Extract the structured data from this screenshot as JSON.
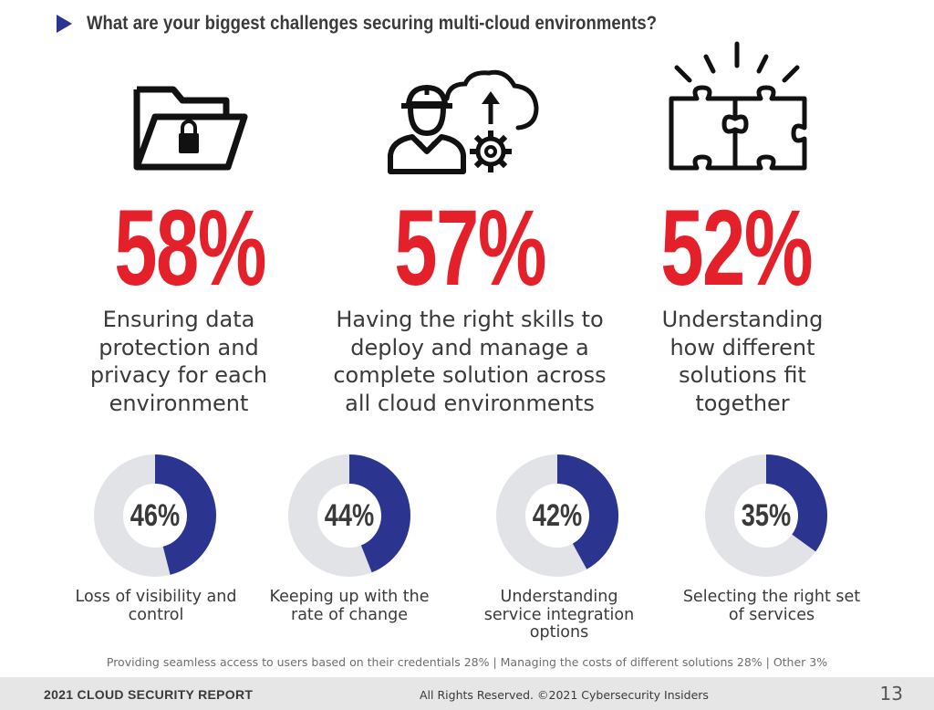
{
  "header": {
    "title": "What are your biggest challenges securing multi-cloud environments?",
    "accent_color": "#2b3590"
  },
  "chart_data": [
    {
      "type": "table",
      "rows": [
        {
          "label": "Ensuring data protection and privacy for each environment",
          "value": 58,
          "display": "58%",
          "icon": "folder-lock-icon"
        },
        {
          "label": "Having the right skills to deploy and manage a complete solution across all cloud environments",
          "value": 57,
          "display": "57%",
          "icon": "engineer-cloud-gear-icon"
        },
        {
          "label": "Understanding how different solutions fit together",
          "value": 52,
          "display": "52%",
          "icon": "puzzle-icon"
        }
      ],
      "value_color": "#e4202a"
    },
    {
      "type": "pie",
      "series": [
        {
          "label": "Loss of visibility and control",
          "value": 46,
          "display": "46%"
        },
        {
          "label": "Keeping up with the rate of change",
          "value": 44,
          "display": "44%"
        },
        {
          "label": "Understanding service integration options",
          "value": 42,
          "display": "42%"
        },
        {
          "label": "Selecting the right set of services",
          "value": 35,
          "display": "35%"
        }
      ],
      "fill_color": "#2b3590",
      "track_color": "#e2e3e7"
    }
  ],
  "footnote": "Providing seamless access to users based on their credentials 28%  |  Managing the costs of different solutions 28%  |  Other 3%",
  "footer": {
    "report": "2021 CLOUD SECURITY REPORT",
    "rights": "All Rights Reserved.  ©2021  Cybersecurity Insiders",
    "page": "13"
  }
}
